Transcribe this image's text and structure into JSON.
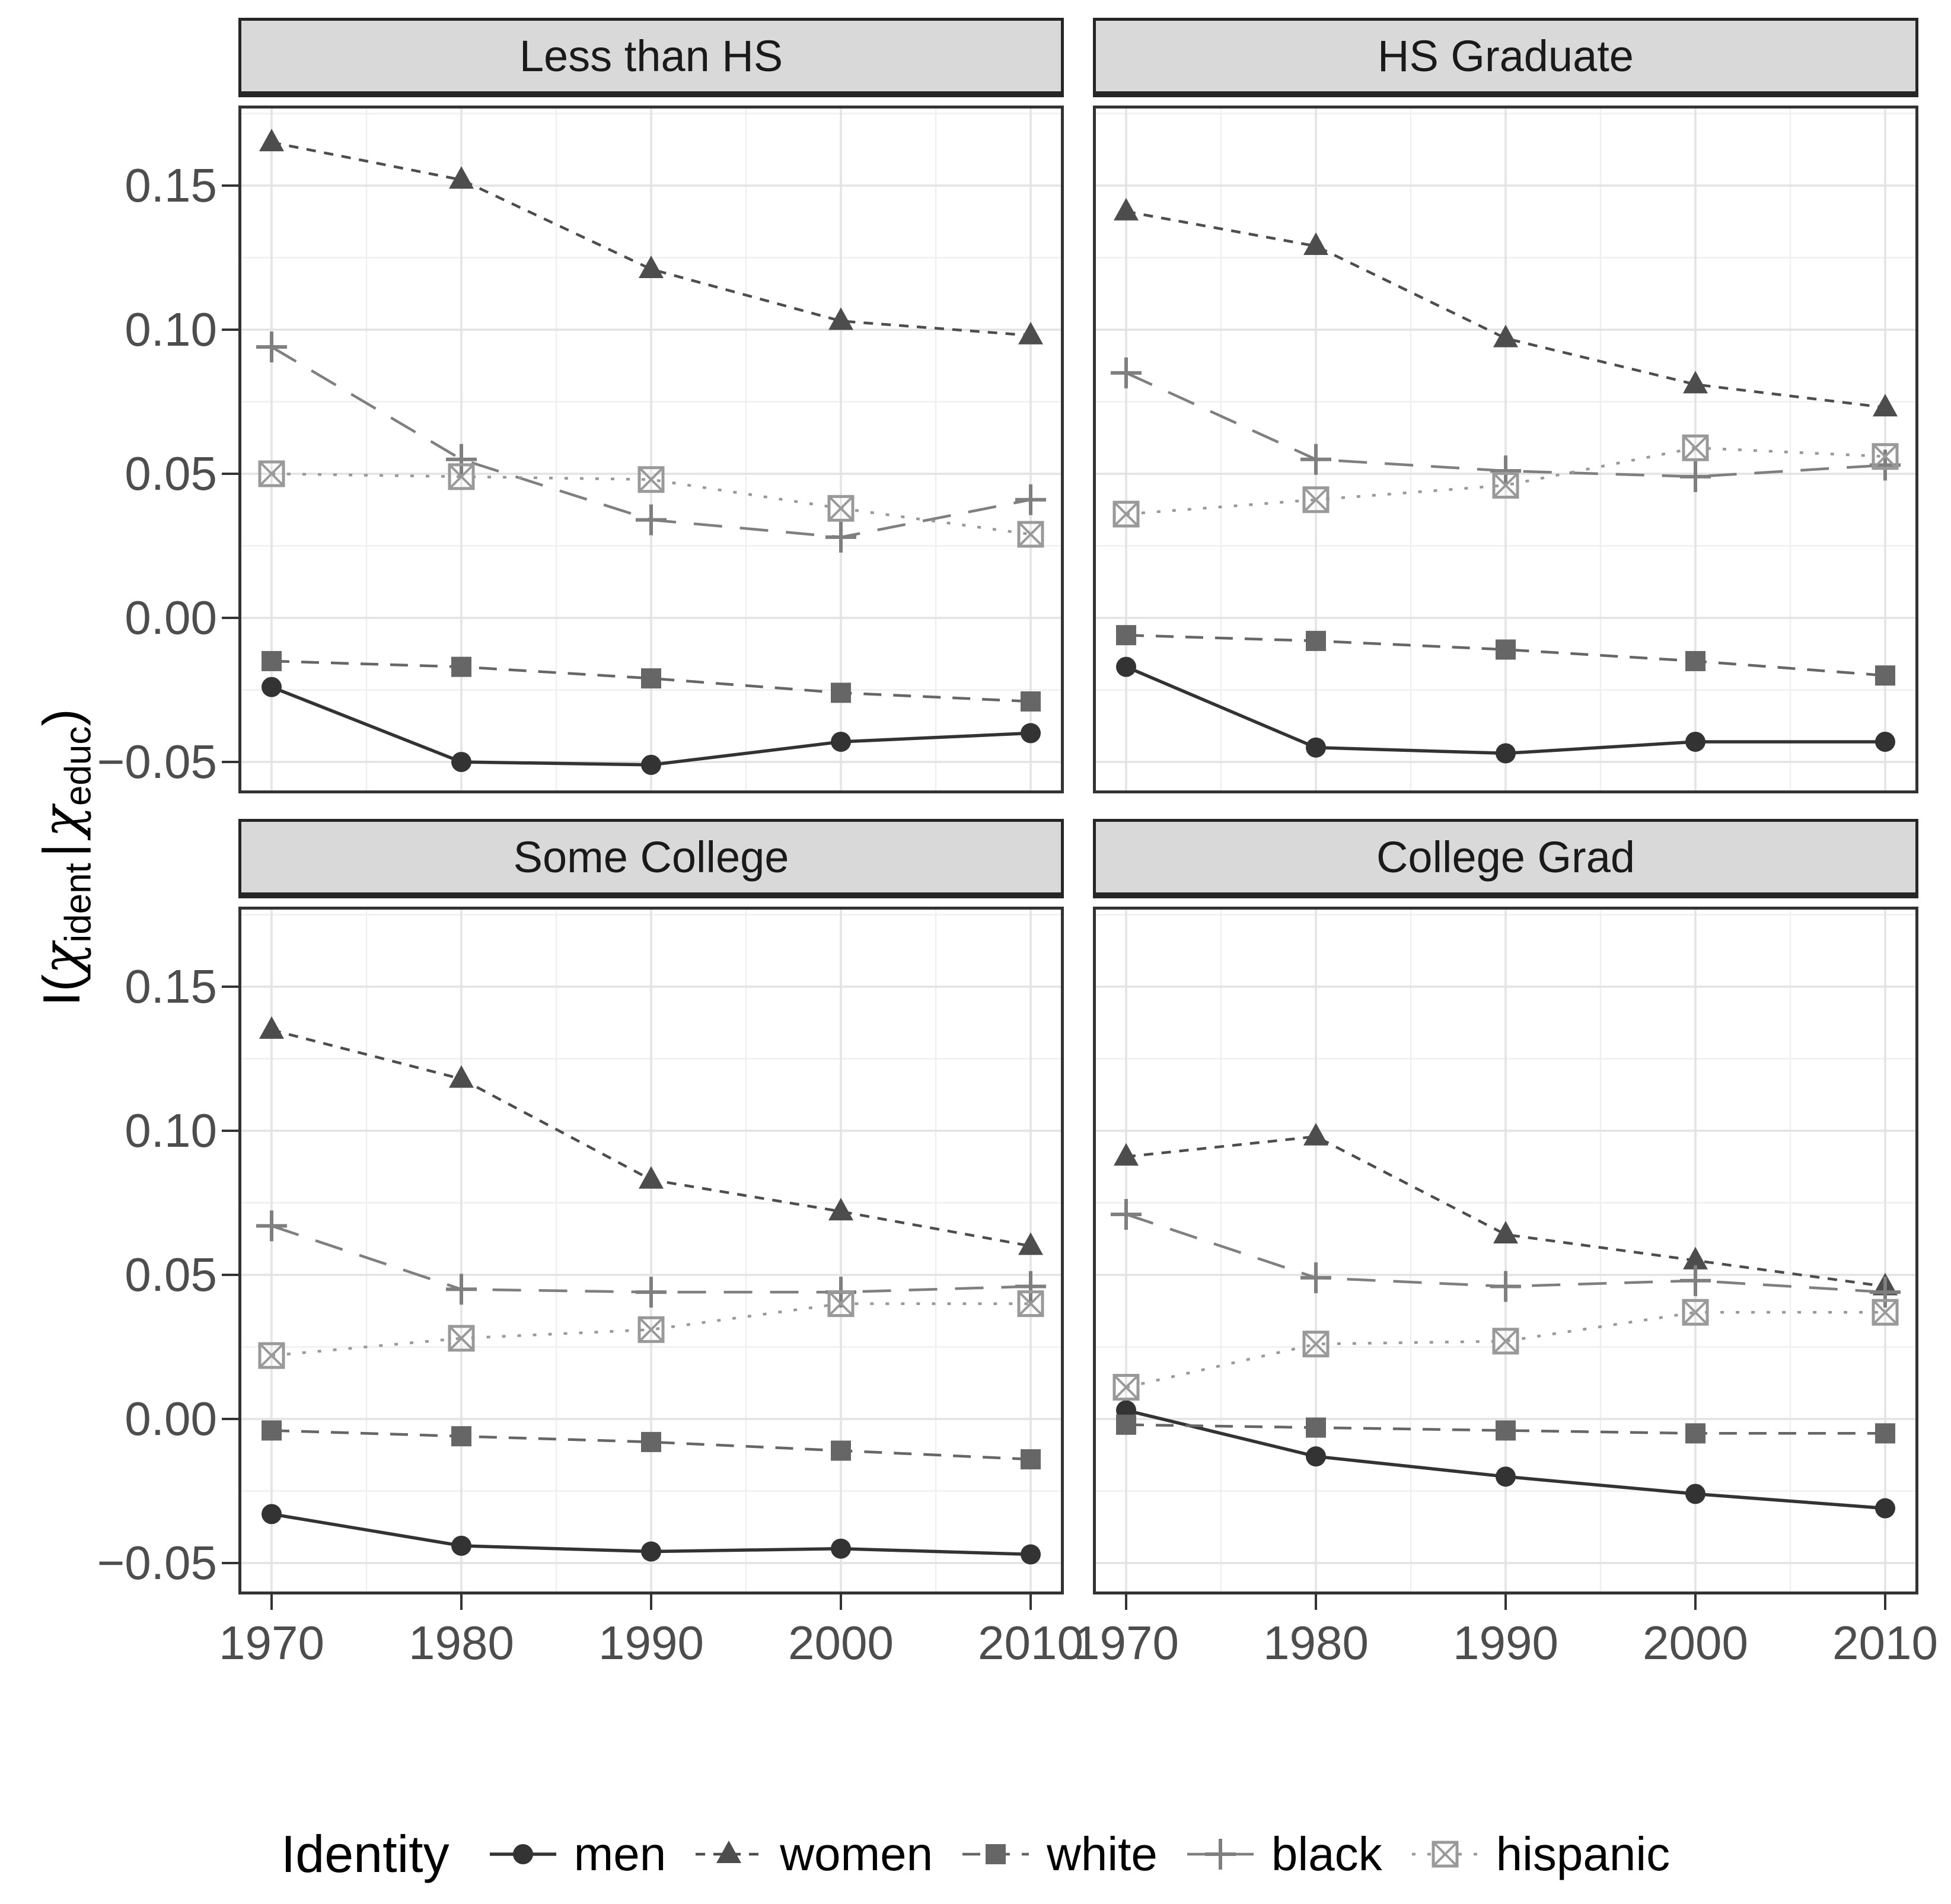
{
  "y_axis": {
    "title_parts": {
      "lead": "I(",
      "chi1": "χ",
      "sub1": "ident",
      "pipe": "|",
      "chi2": "χ",
      "sub2": "educ",
      "close": ")"
    },
    "tick_labels": [
      "0.15",
      "0.10",
      "0.05",
      "0.00",
      "−0.05"
    ],
    "tick_values": [
      0.15,
      0.1,
      0.05,
      0.0,
      -0.05
    ]
  },
  "x_axis": {
    "tick_labels": [
      "1970",
      "1980",
      "1990",
      "2000",
      "2010"
    ],
    "tick_values": [
      1970,
      1980,
      1990,
      2000,
      2010
    ]
  },
  "colors": {
    "strip_background": "#D9D9D9",
    "panel_border": "#333333",
    "grid_major": "#E3E3E3",
    "grid_minor": "#EFEFEF",
    "tick_text": "#4D4D4D"
  },
  "chart_data": {
    "type": "line",
    "x": [
      1970,
      1980,
      1990,
      2000,
      2010
    ],
    "ylabel": "I(χident | χeduc)",
    "ylim": [
      -0.061,
      0.178
    ],
    "grid": true,
    "legend_position": "bottom",
    "legend_title": "Identity",
    "y_major_gridlines": [
      0.15,
      0.1,
      0.05,
      0.0,
      -0.05
    ],
    "y_minor_gridlines": [
      0.175,
      0.125,
      0.075,
      0.025,
      -0.025
    ],
    "x_major_gridlines": [
      1970,
      1980,
      1990,
      2000,
      2010
    ],
    "x_minor_gridlines": [
      1975,
      1985,
      1995,
      2005
    ],
    "series_names": [
      "men",
      "women",
      "white",
      "black",
      "hispanic"
    ],
    "styles": {
      "men": {
        "color": "#333333",
        "dash": "",
        "marker": "circle",
        "line_width": 5.5
      },
      "women": {
        "color": "#4D4D4D",
        "dash": "16 14",
        "marker": "triangle",
        "line_width": 4.5
      },
      "white": {
        "color": "#666666",
        "dash": "30 20",
        "marker": "square",
        "line_width": 4.5
      },
      "black": {
        "color": "#7F7F7F",
        "dash": "48 30",
        "marker": "plus",
        "line_width": 4.5
      },
      "hispanic": {
        "color": "#999999",
        "dash": "6 20",
        "marker": "crossed-square",
        "line_width": 4.5
      }
    },
    "facets": [
      {
        "label": "Less than HS",
        "series": {
          "men": [
            -0.024,
            -0.05,
            -0.051,
            -0.043,
            -0.04
          ],
          "women": [
            0.165,
            0.152,
            0.121,
            0.103,
            0.098
          ],
          "white": [
            -0.015,
            -0.017,
            -0.021,
            -0.026,
            -0.029
          ],
          "black": [
            0.094,
            0.055,
            0.034,
            0.028,
            0.041
          ],
          "hispanic": [
            0.05,
            0.049,
            0.048,
            0.038,
            0.029
          ]
        }
      },
      {
        "label": "HS Graduate",
        "series": {
          "men": [
            -0.017,
            -0.045,
            -0.047,
            -0.043,
            -0.043
          ],
          "women": [
            0.141,
            0.129,
            0.097,
            0.081,
            0.073
          ],
          "white": [
            -0.006,
            -0.008,
            -0.011,
            -0.015,
            -0.02
          ],
          "black": [
            0.085,
            0.055,
            0.051,
            0.049,
            0.053
          ],
          "hispanic": [
            0.036,
            0.041,
            0.046,
            0.059,
            0.056
          ]
        }
      },
      {
        "label": "Some College",
        "series": {
          "men": [
            -0.033,
            -0.044,
            -0.046,
            -0.045,
            -0.047
          ],
          "women": [
            0.135,
            0.118,
            0.083,
            0.072,
            0.06
          ],
          "white": [
            -0.004,
            -0.006,
            -0.008,
            -0.011,
            -0.014
          ],
          "black": [
            0.067,
            0.045,
            0.044,
            0.044,
            0.046
          ],
          "hispanic": [
            0.022,
            0.028,
            0.031,
            0.04,
            0.04
          ]
        }
      },
      {
        "label": "College Grad",
        "series": {
          "men": [
            0.003,
            -0.013,
            -0.02,
            -0.026,
            -0.031
          ],
          "women": [
            0.091,
            0.098,
            0.064,
            0.055,
            0.046
          ],
          "white": [
            -0.002,
            -0.003,
            -0.004,
            -0.005,
            -0.005
          ],
          "black": [
            0.071,
            0.049,
            0.046,
            0.048,
            0.044
          ],
          "hispanic": [
            0.011,
            0.026,
            0.027,
            0.037,
            0.037
          ]
        }
      }
    ]
  }
}
